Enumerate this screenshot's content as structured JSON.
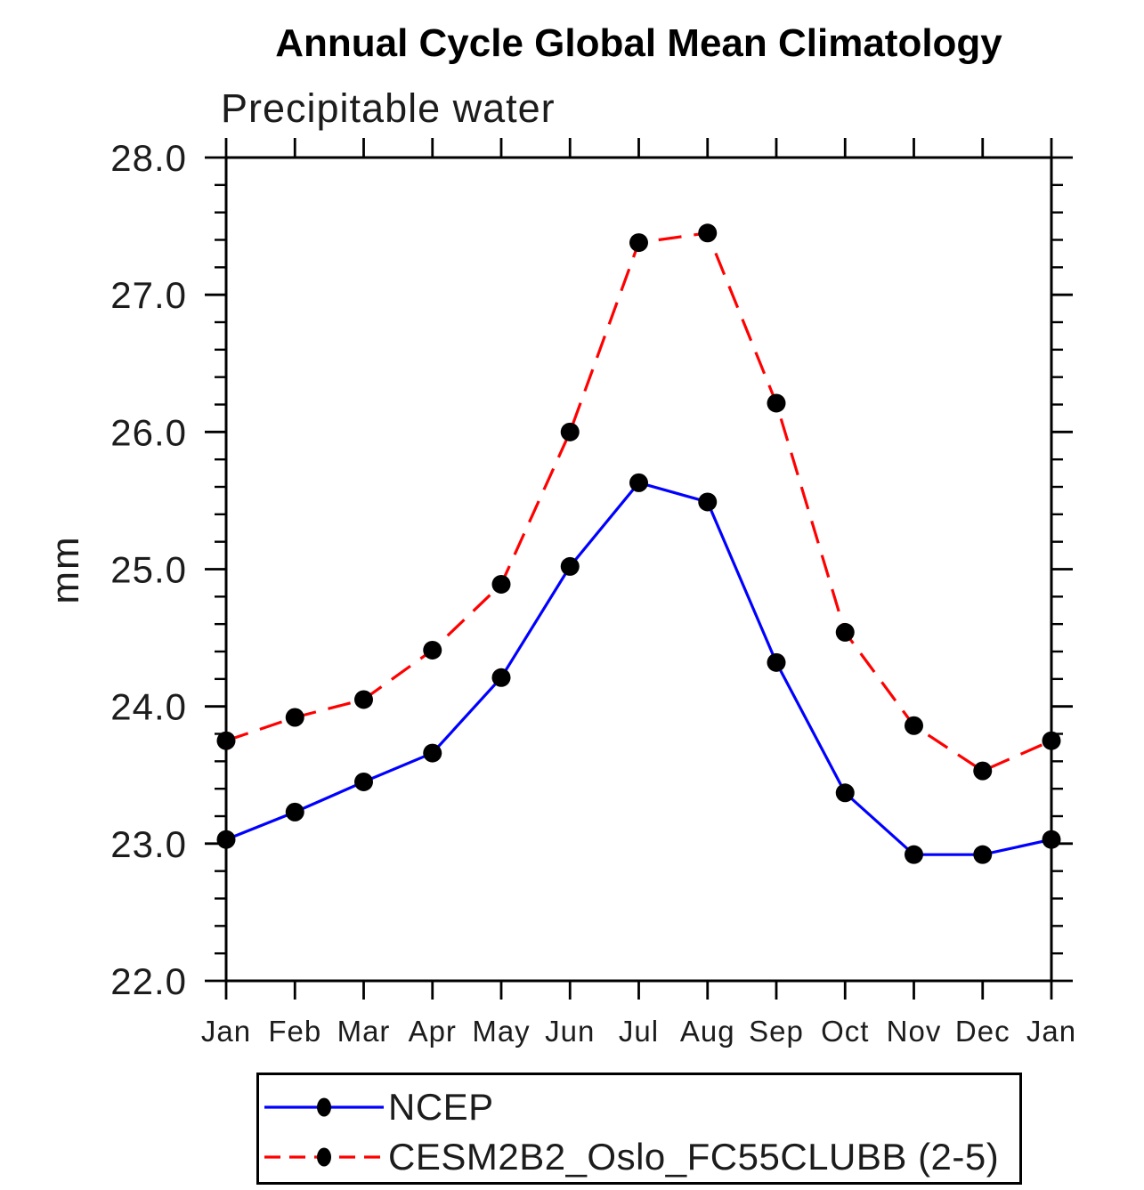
{
  "title": "Annual Cycle Global Mean Climatology",
  "subtitle": "Precipitable water",
  "chart_data": {
    "type": "line",
    "title": "Annual Cycle Global Mean Climatology",
    "subtitle": "Precipitable water",
    "ylabel": "mm",
    "categories": [
      "Jan",
      "Feb",
      "Mar",
      "Apr",
      "May",
      "Jun",
      "Jul",
      "Aug",
      "Sep",
      "Oct",
      "Nov",
      "Dec",
      "Jan"
    ],
    "series": [
      {
        "name": "NCEP",
        "line_style": "solid",
        "color": "#0000ff",
        "marker": "filled-circle",
        "marker_color": "#000000",
        "values": [
          23.03,
          23.23,
          23.45,
          23.66,
          24.21,
          25.02,
          25.63,
          25.49,
          24.32,
          23.37,
          22.92,
          22.92,
          23.03
        ]
      },
      {
        "name": "CESM2B2_Oslo_FC55CLUBB (2-5)",
        "line_style": "dashed",
        "color": "#ff0000",
        "marker": "filled-circle",
        "marker_color": "#000000",
        "values": [
          23.75,
          23.92,
          24.05,
          24.41,
          24.89,
          26.0,
          27.38,
          27.45,
          26.21,
          24.54,
          23.86,
          23.53,
          23.75
        ]
      }
    ],
    "ylim": [
      22.0,
      28.0
    ],
    "ytick_labels": [
      "22.0",
      "23.0",
      "24.0",
      "25.0",
      "26.0",
      "27.0",
      "28.0"
    ],
    "ytick_step": 1.0,
    "ytick_minor_step": 0.2,
    "grid": false,
    "legend_position": "bottom",
    "axis_color": "#000000"
  },
  "legend": {
    "items": [
      {
        "label": "NCEP"
      },
      {
        "label": "CESM2B2_Oslo_FC55CLUBB (2-5)"
      }
    ]
  }
}
